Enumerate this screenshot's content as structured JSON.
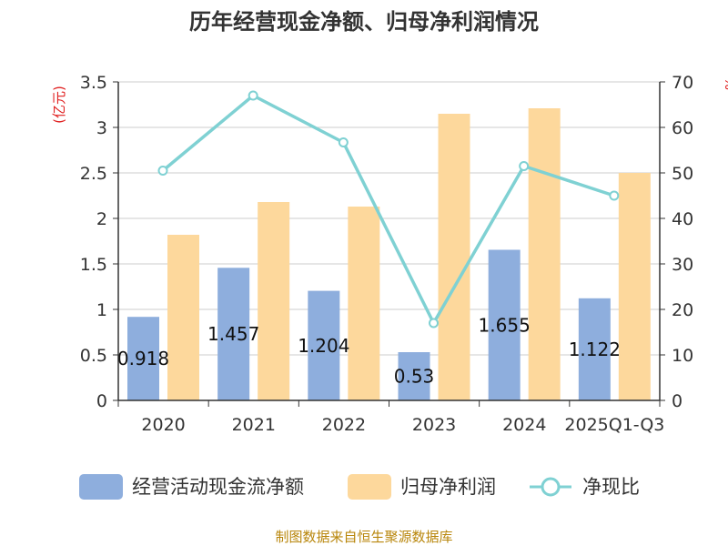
{
  "chart_data": {
    "type": "bar",
    "title": "历年经营现金净额、归母净利润情况",
    "categories": [
      "2020",
      "2021",
      "2022",
      "2023",
      "2024",
      "2025Q1-Q3"
    ],
    "y_left": {
      "unit": "(亿元)",
      "ticks": [
        "0",
        "0.5",
        "1",
        "1.5",
        "2",
        "2.5",
        "3",
        "3.5"
      ],
      "ylim": [
        0,
        3.5
      ]
    },
    "y_right": {
      "unit": "%",
      "ticks": [
        "0",
        "10",
        "20",
        "30",
        "40",
        "50",
        "60",
        "70"
      ],
      "ylim": [
        0,
        70
      ]
    },
    "series": [
      {
        "name": "经营活动现金流净额",
        "axis": "left",
        "kind": "bar",
        "color": "#8eaedd",
        "values": [
          0.918,
          1.457,
          1.204,
          0.53,
          1.655,
          1.122
        ],
        "labels": [
          "0.918",
          "1.457",
          "1.204",
          "0.53",
          "1.655",
          "1.122"
        ]
      },
      {
        "name": "归母净利润",
        "axis": "left",
        "kind": "bar",
        "color": "#fdd89c",
        "values": [
          1.82,
          2.18,
          2.13,
          3.15,
          3.21,
          2.5
        ]
      },
      {
        "name": "净现比",
        "axis": "right",
        "kind": "line",
        "color": "#7fd1d3",
        "values": [
          50.5,
          67,
          56.7,
          17,
          51.5,
          45
        ]
      }
    ],
    "source": "制图数据来自恒生聚源数据库"
  }
}
